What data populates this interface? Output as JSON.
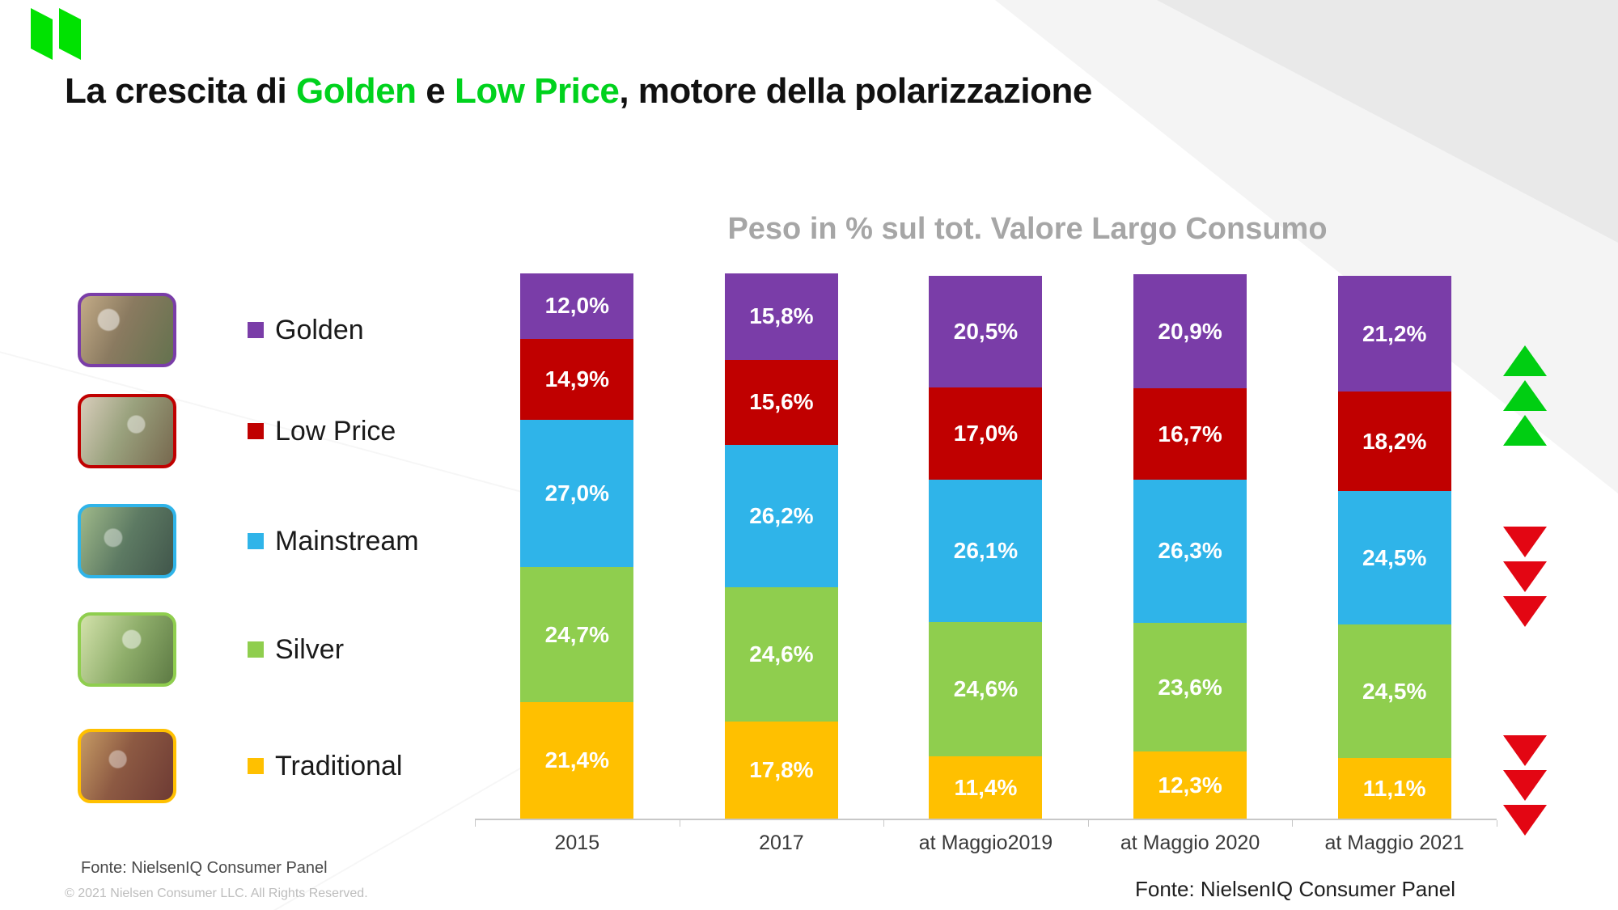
{
  "slide": {
    "logo_green": "#00E201",
    "accent_green": "#00D21D",
    "title": {
      "part1": "La crescita di ",
      "highlight1": "Golden",
      "part2": " e ",
      "highlight2": "Low Price",
      "part3": ", motore della polarizzazione"
    },
    "footer": {
      "left_source": "Fonte: NielsenIQ Consumer Panel",
      "copyright": "© 2021 Nielsen Consumer LLC. All Rights Reserved.",
      "right_source": "Fonte: NielsenIQ Consumer Panel"
    }
  },
  "legend": {
    "items": [
      {
        "label": "Golden",
        "color": "#7A3DA8"
      },
      {
        "label": "Low Price",
        "color": "#C00000"
      },
      {
        "label": "Mainstream",
        "color": "#2FB4E9"
      },
      {
        "label": "Silver",
        "color": "#8FCE4E"
      },
      {
        "label": "Traditional",
        "color": "#FFC000"
      }
    ]
  },
  "chart_data": {
    "type": "bar",
    "stacked": true,
    "stack_order": "top-to-bottom",
    "title": "Peso in % sul tot. Valore Largo Consumo",
    "categories": [
      "2015",
      "2017",
      "at Maggio2019",
      "at Maggio 2020",
      "at Maggio 2021"
    ],
    "series": [
      {
        "name": "Golden",
        "color": "#7A3DA8",
        "values": [
          12.0,
          15.8,
          20.5,
          20.9,
          21.2
        ],
        "labels": [
          "12,0%",
          "15,8%",
          "20,5%",
          "20,9%",
          "21,2%"
        ]
      },
      {
        "name": "Low Price",
        "color": "#C00000",
        "values": [
          14.9,
          15.6,
          17.0,
          16.7,
          18.2
        ],
        "labels": [
          "14,9%",
          "15,6%",
          "17,0%",
          "16,7%",
          "18,2%"
        ]
      },
      {
        "name": "Mainstream",
        "color": "#2FB4E9",
        "values": [
          27.0,
          26.2,
          26.1,
          26.3,
          24.5
        ],
        "labels": [
          "27,0%",
          "26,2%",
          "26,1%",
          "26,3%",
          "24,5%"
        ]
      },
      {
        "name": "Silver",
        "color": "#8FCE4E",
        "values": [
          24.7,
          24.6,
          24.6,
          23.6,
          24.5
        ],
        "labels": [
          "24,7%",
          "24,6%",
          "24,6%",
          "23,6%",
          "24,5%"
        ]
      },
      {
        "name": "Traditional",
        "color": "#FFC000",
        "values": [
          21.4,
          17.8,
          11.4,
          12.3,
          11.1
        ],
        "labels": [
          "21,4%",
          "17,8%",
          "11,4%",
          "12,3%",
          "11,1%"
        ]
      }
    ],
    "ylim": [
      0,
      100
    ],
    "value_unit": "%",
    "legend_position": "left",
    "gridlines": false
  },
  "trend_arrows": {
    "up_color": "#00CE12",
    "down_color": "#E30613",
    "groups": [
      {
        "id": "golden-low-price-growth",
        "direction": "up",
        "count": 3
      },
      {
        "id": "mainstream-decline",
        "direction": "down",
        "count": 3
      },
      {
        "id": "traditional-decline",
        "direction": "down",
        "count": 3
      }
    ]
  }
}
